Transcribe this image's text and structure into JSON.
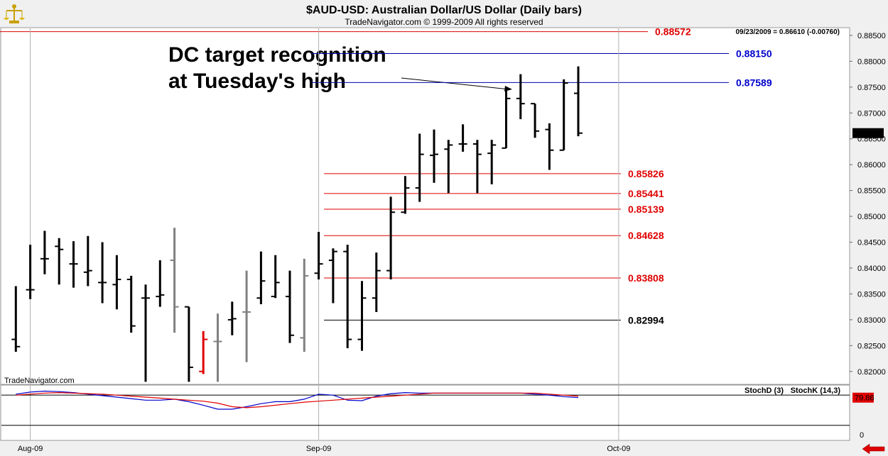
{
  "header": {
    "title": "$AUD-USD:  Australian Dollar/US Dollar  (Daily bars)",
    "subtitle": "TradeNavigator.com © 1999-2009 All rights reserved",
    "readout": "09/23/2009 = 0.86610 (-0.00760)",
    "watermark": "TradeNavigator.com",
    "logo_icon": "scales-logo-icon",
    "back_arrow_icon": "left-arrow-icon"
  },
  "annotation": {
    "line1": "DC target recognition",
    "line2": "at Tuesday's high"
  },
  "chart_data": {
    "type": "bar",
    "subtype": "ohlc",
    "ylim": [
      0.8175,
      0.8865
    ],
    "y_ticks": [
      "0.88500",
      "0.88000",
      "0.87500",
      "0.87000",
      "0.86500",
      "0.86000",
      "0.85500",
      "0.85000",
      "0.84500",
      "0.84000",
      "0.83500",
      "0.83000",
      "0.82500",
      "0.82000"
    ],
    "x_labels": [
      {
        "label": "Aug-09",
        "index": 1
      },
      {
        "label": "Sep-09",
        "index": 21
      },
      {
        "label": "Oct-09",
        "index": 41.8
      }
    ],
    "current_price": {
      "label": "0.86610",
      "value": 0.8661
    },
    "colors": {
      "up": "#000000",
      "pullback": "#808080",
      "signal": "#e00000"
    },
    "bars": [
      {
        "i": 0,
        "o": 0.8262,
        "h": 0.8365,
        "l": 0.8238,
        "c": 0.8248
      },
      {
        "i": 1,
        "o": 0.8358,
        "h": 0.8445,
        "l": 0.834,
        "c": 0.8358
      },
      {
        "i": 2,
        "o": 0.8418,
        "h": 0.8472,
        "l": 0.8388,
        "c": 0.8418
      },
      {
        "i": 3,
        "o": 0.8442,
        "h": 0.8458,
        "l": 0.8368,
        "c": 0.8436
      },
      {
        "i": 4,
        "o": 0.8408,
        "h": 0.8452,
        "l": 0.8362,
        "c": 0.8408
      },
      {
        "i": 5,
        "o": 0.8392,
        "h": 0.8462,
        "l": 0.8365,
        "c": 0.8395
      },
      {
        "i": 6,
        "o": 0.8372,
        "h": 0.845,
        "l": 0.8332,
        "c": 0.8372
      },
      {
        "i": 7,
        "o": 0.8368,
        "h": 0.8425,
        "l": 0.832,
        "c": 0.8378
      },
      {
        "i": 8,
        "o": 0.8378,
        "h": 0.8385,
        "l": 0.8275,
        "c": 0.8288
      },
      {
        "i": 9,
        "o": 0.8342,
        "h": 0.8368,
        "l": 0.818,
        "c": 0.8342
      },
      {
        "i": 10,
        "o": 0.8345,
        "h": 0.8415,
        "l": 0.8325,
        "c": 0.8348
      },
      {
        "i": 11,
        "o": 0.8415,
        "h": 0.8478,
        "l": 0.8275,
        "c": 0.8325,
        "color": "gray"
      },
      {
        "i": 12,
        "o": 0.8325,
        "h": 0.8325,
        "l": 0.818,
        "c": 0.8208
      },
      {
        "i": 13,
        "o": 0.82,
        "h": 0.8278,
        "l": 0.8195,
        "c": 0.8262,
        "color": "red"
      },
      {
        "i": 14,
        "o": 0.8258,
        "h": 0.8312,
        "l": 0.818,
        "c": 0.8258,
        "color": "gray"
      },
      {
        "i": 15,
        "o": 0.83,
        "h": 0.8335,
        "l": 0.827,
        "c": 0.8302
      },
      {
        "i": 16,
        "o": 0.8315,
        "h": 0.8395,
        "l": 0.8218,
        "c": 0.8315,
        "color": "gray"
      },
      {
        "i": 17,
        "o": 0.8342,
        "h": 0.8432,
        "l": 0.833,
        "c": 0.8375
      },
      {
        "i": 18,
        "o": 0.8345,
        "h": 0.8425,
        "l": 0.8342,
        "c": 0.8372
      },
      {
        "i": 19,
        "o": 0.8345,
        "h": 0.8395,
        "l": 0.8255,
        "c": 0.827
      },
      {
        "i": 20,
        "o": 0.8265,
        "h": 0.8418,
        "l": 0.8238,
        "c": 0.8385,
        "color": "gray"
      },
      {
        "i": 21,
        "o": 0.839,
        "h": 0.847,
        "l": 0.8378,
        "c": 0.8408
      },
      {
        "i": 22,
        "o": 0.8415,
        "h": 0.8438,
        "l": 0.8332,
        "c": 0.8432
      },
      {
        "i": 23,
        "o": 0.8432,
        "h": 0.8445,
        "l": 0.8245,
        "c": 0.8262
      },
      {
        "i": 24,
        "o": 0.8262,
        "h": 0.8375,
        "l": 0.824,
        "c": 0.8342
      },
      {
        "i": 25,
        "o": 0.8342,
        "h": 0.843,
        "l": 0.8315,
        "c": 0.8395
      },
      {
        "i": 26,
        "o": 0.8395,
        "h": 0.8538,
        "l": 0.8378,
        "c": 0.8508
      },
      {
        "i": 27,
        "o": 0.8508,
        "h": 0.8578,
        "l": 0.8505,
        "c": 0.8555
      },
      {
        "i": 28,
        "o": 0.8555,
        "h": 0.866,
        "l": 0.8528,
        "c": 0.862
      },
      {
        "i": 29,
        "o": 0.8618,
        "h": 0.8668,
        "l": 0.8565,
        "c": 0.862
      },
      {
        "i": 30,
        "o": 0.863,
        "h": 0.8648,
        "l": 0.8545,
        "c": 0.8638
      },
      {
        "i": 31,
        "o": 0.864,
        "h": 0.8678,
        "l": 0.8625,
        "c": 0.864
      },
      {
        "i": 32,
        "o": 0.864,
        "h": 0.8648,
        "l": 0.8545,
        "c": 0.862
      },
      {
        "i": 33,
        "o": 0.8622,
        "h": 0.8648,
        "l": 0.8562,
        "c": 0.8638
      },
      {
        "i": 34,
        "o": 0.8632,
        "h": 0.8748,
        "l": 0.8632,
        "c": 0.8728
      },
      {
        "i": 35,
        "o": 0.8728,
        "h": 0.8775,
        "l": 0.8688,
        "c": 0.8718
      },
      {
        "i": 36,
        "o": 0.8718,
        "h": 0.8718,
        "l": 0.8652,
        "c": 0.8665
      },
      {
        "i": 37,
        "o": 0.8668,
        "h": 0.868,
        "l": 0.859,
        "c": 0.8628
      },
      {
        "i": 38,
        "o": 0.8628,
        "h": 0.8765,
        "l": 0.8628,
        "c": 0.8758
      },
      {
        "i": 39,
        "o": 0.8738,
        "h": 0.879,
        "l": 0.8655,
        "c": 0.8661
      }
    ],
    "levels": [
      {
        "label": "0.88572",
        "value": 0.88572,
        "color": "#e00000",
        "line": "#e00000"
      },
      {
        "label": "0.88150",
        "value": 0.8815,
        "color": "#0000cc",
        "line": "#0000aa"
      },
      {
        "label": "0.87589",
        "value": 0.87589,
        "color": "#0000cc",
        "line": "#0000aa"
      },
      {
        "label": "0.85826",
        "value": 0.85826,
        "color": "#e00000",
        "line": "#e00000"
      },
      {
        "label": "0.85441",
        "value": 0.85441,
        "color": "#e00000",
        "line": "#e00000"
      },
      {
        "label": "0.85139",
        "value": 0.85139,
        "color": "#e00000",
        "line": "#e00000"
      },
      {
        "label": "0.84628",
        "value": 0.84628,
        "color": "#e00000",
        "line": "#e00000"
      },
      {
        "label": "0.83808",
        "value": 0.83808,
        "color": "#e00000",
        "line": "#e00000"
      },
      {
        "label": "0.82994",
        "value": 0.82994,
        "color": "#000000",
        "line": "#000000"
      }
    ],
    "indicator": {
      "stochd_label": "StochD (3)",
      "stochk_label": "StochK (14,3)",
      "value_label": "79.86",
      "zero_label": "0",
      "stochd_color": "#e00000",
      "stochk_color": "#0000cc",
      "ylim": [
        -10,
        100
      ],
      "reference_lines": [
        80,
        20
      ],
      "stochd": [
        80,
        82,
        84,
        85,
        84,
        83,
        82,
        80,
        78,
        76,
        74,
        72,
        70,
        68,
        64,
        57,
        55,
        57,
        60,
        63,
        66,
        68,
        70,
        72,
        74,
        76,
        78,
        80,
        82,
        84,
        84,
        84,
        84,
        84,
        84,
        84,
        84,
        82,
        80,
        78
      ],
      "stochk": [
        82,
        86,
        88,
        87,
        85,
        82,
        79,
        76,
        73,
        70,
        70,
        72,
        67,
        60,
        52,
        52,
        57,
        63,
        67,
        67,
        72,
        82,
        80,
        70,
        69,
        78,
        83,
        85,
        84,
        84,
        84,
        84,
        84,
        84,
        84,
        84,
        82,
        80,
        77,
        75
      ]
    }
  }
}
